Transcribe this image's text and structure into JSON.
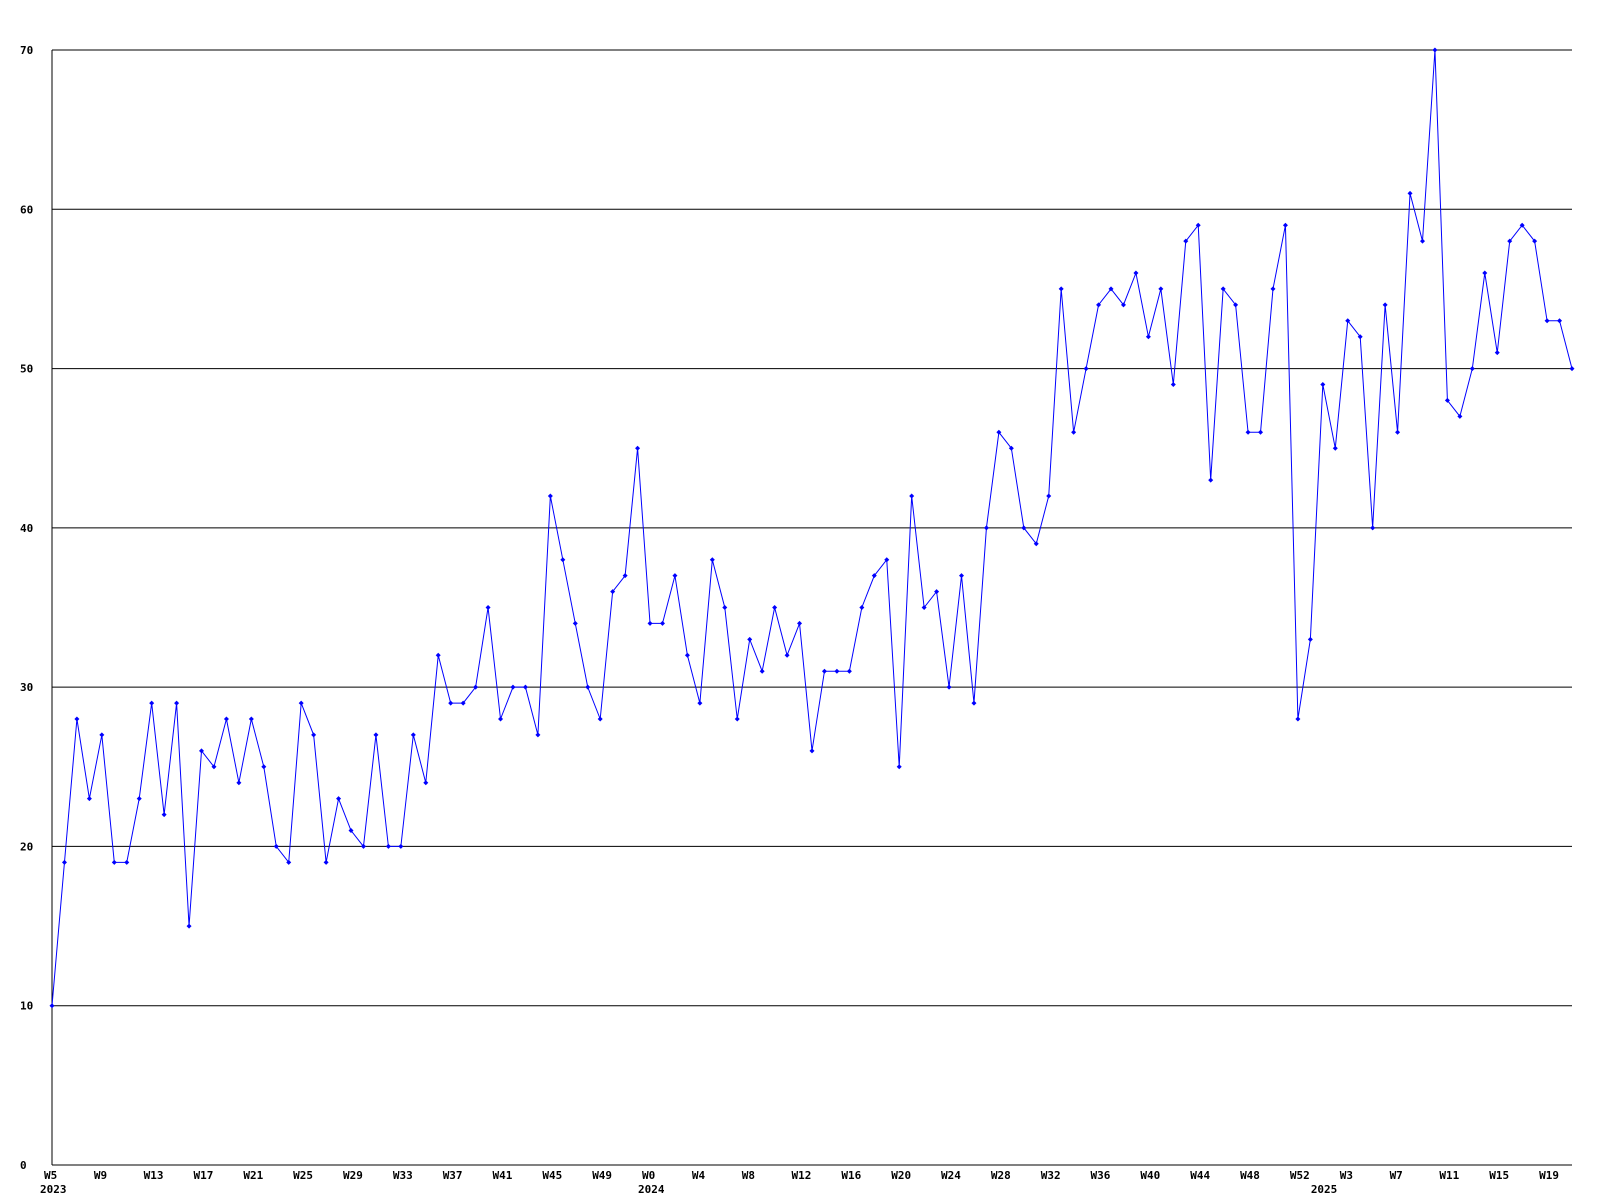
{
  "chart_data": {
    "type": "line",
    "categories": [
      "W5",
      null,
      null,
      null,
      "W9",
      null,
      null,
      null,
      "W13",
      null,
      null,
      null,
      "W17",
      null,
      null,
      null,
      "W21",
      null,
      null,
      null,
      "W25",
      null,
      null,
      null,
      "W29",
      null,
      null,
      null,
      "W33",
      null,
      null,
      null,
      "W37",
      null,
      null,
      null,
      "W41",
      null,
      null,
      null,
      "W45",
      null,
      null,
      null,
      "W49",
      null,
      null,
      null,
      "W0",
      null,
      null,
      null,
      "W4",
      null,
      null,
      null,
      "W8",
      null,
      null,
      null,
      "W12",
      null,
      null,
      null,
      "W16",
      null,
      null,
      null,
      "W20",
      null,
      null,
      null,
      "W24",
      null,
      null,
      null,
      "W28",
      null,
      null,
      null,
      "W32",
      null,
      null,
      null,
      "W36",
      null,
      null,
      null,
      "W40",
      null,
      null,
      null,
      "W44",
      null,
      null,
      null,
      "W48",
      null,
      null,
      null,
      "W52",
      null,
      null,
      null,
      "W3",
      null,
      null,
      null,
      "W7",
      null,
      null,
      null,
      "W11",
      null,
      null,
      null,
      "W15",
      null,
      null,
      null,
      "W19",
      null,
      null
    ],
    "category_groups": [
      "2023",
      null,
      null,
      null,
      null,
      null,
      null,
      null,
      null,
      null,
      null,
      null,
      null,
      null,
      null,
      null,
      null,
      null,
      null,
      null,
      null,
      null,
      null,
      null,
      null,
      null,
      null,
      null,
      null,
      null,
      null,
      null,
      null,
      null,
      null,
      null,
      null,
      null,
      null,
      null,
      null,
      null,
      null,
      null,
      null,
      null,
      null,
      null,
      "2024",
      null,
      null,
      null,
      null,
      null,
      null,
      null,
      null,
      null,
      null,
      null,
      null,
      null,
      null,
      null,
      null,
      null,
      null,
      null,
      null,
      null,
      null,
      null,
      null,
      null,
      null,
      null,
      null,
      null,
      null,
      null,
      null,
      null,
      null,
      null,
      null,
      null,
      null,
      null,
      null,
      null,
      null,
      null,
      null,
      null,
      null,
      null,
      null,
      null,
      null,
      null,
      null,
      null,
      "2025",
      null,
      null,
      null,
      null,
      null,
      null,
      null,
      null,
      null,
      null,
      null,
      null,
      null,
      null,
      null,
      null,
      null,
      null,
      null,
      null
    ],
    "series": [
      {
        "color": "#0000ff",
        "values": [
          10,
          19,
          28,
          23,
          27,
          19,
          19,
          23,
          29,
          22,
          29,
          15,
          26,
          25,
          28,
          24,
          28,
          25,
          20,
          19,
          29,
          27,
          19,
          23,
          21,
          20,
          27,
          20,
          20,
          27,
          24,
          32,
          29,
          29,
          30,
          35,
          28,
          30,
          30,
          27,
          42,
          38,
          34,
          30,
          28,
          36,
          37,
          45,
          34,
          34,
          37,
          32,
          29,
          38,
          35,
          28,
          33,
          31,
          35,
          32,
          34,
          26,
          31,
          31,
          31,
          35,
          37,
          38,
          25,
          42,
          35,
          36,
          30,
          37,
          29,
          40,
          46,
          45,
          40,
          39,
          42,
          55,
          46,
          50,
          54,
          55,
          54,
          56,
          52,
          55,
          49,
          58,
          59,
          43,
          55,
          54,
          46,
          46,
          55,
          59,
          28,
          33,
          49,
          45,
          53,
          52,
          40,
          54,
          46,
          61,
          58,
          70,
          48,
          47,
          50,
          56,
          51,
          58,
          59,
          58,
          53,
          53,
          50
        ]
      }
    ],
    "ylim": [
      0,
      70
    ],
    "yticks": [
      0,
      10,
      20,
      30,
      40,
      50,
      60,
      70
    ],
    "grid": true
  }
}
